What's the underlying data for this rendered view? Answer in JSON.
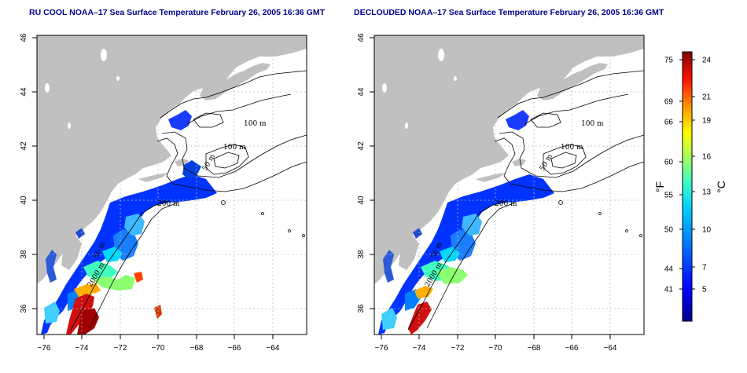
{
  "panels": [
    {
      "id": "left",
      "title": "RU COOL NOAA–17 Sea Surface Temperature February 26, 2005 16:36 GMT",
      "variant": "raw",
      "contour_labels": [
        "100 m",
        "100 m",
        "50 m",
        "200 m",
        "50 m",
        "2000 m"
      ]
    },
    {
      "id": "right",
      "title": "DECLOUDED NOAA–17 Sea Surface Temperature February 26, 2005 16:36 GMT",
      "variant": "declouded",
      "contour_labels": [
        "100 m",
        "100 m",
        "50 m",
        "200 m",
        "50 m",
        "2000 m"
      ]
    }
  ],
  "axes": {
    "x_ticks": [
      "−76",
      "−74",
      "−72",
      "−70",
      "−68",
      "−66",
      "−64"
    ],
    "y_ticks": [
      "46",
      "44",
      "42",
      "40",
      "38",
      "36"
    ]
  },
  "colorbar": {
    "fahrenheit_label": "°F",
    "celsius_label": "°C",
    "fahrenheit_ticks": [
      "75",
      "69",
      "66",
      "60",
      "55",
      "50",
      "44",
      "41"
    ],
    "celsius_ticks": [
      "24",
      "21",
      "19",
      "16",
      "13",
      "10",
      "7",
      "5"
    ]
  },
  "colors": {
    "land": "#c0c0c0",
    "ocean": "#ffffff",
    "title": "#00008b",
    "grid": "#bbbbbb",
    "contour": "#000000"
  }
}
